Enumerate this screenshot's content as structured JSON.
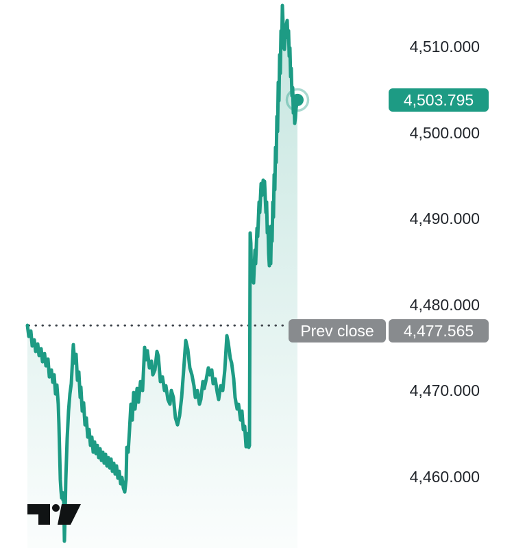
{
  "chart": {
    "prev_close_text": "Prev close",
    "prev_close": 4477.565,
    "prev_close_value_label": "4,477.565",
    "last_price": 4503.795,
    "last_price_label": "4,503.795",
    "colors": {
      "line": "#1d9b84",
      "accent_badge": "#1d9b84",
      "area_top": "rgba(29,155,132,0.26)",
      "area_bottom": "rgba(29,155,132,0.02)",
      "gray_badge": "#888b8e",
      "dotted_line": "#3f454c",
      "axis_text": "#22262c",
      "marker_ring": "rgba(29,155,132,0.38)",
      "logo": "#101314",
      "background": "#ffffff"
    },
    "chart_data": {
      "type": "area",
      "ylabel": "price",
      "grid": "off",
      "legend": "none",
      "axis_position": "right",
      "ylim": [
        4452,
        4515.5
      ],
      "y_ticks": [
        {
          "value": 4510,
          "label": "4,510.000"
        },
        {
          "value": 4500,
          "label": "4,500.000"
        },
        {
          "value": 4490,
          "label": "4,490.000"
        },
        {
          "value": 4480,
          "label": "4,480.000"
        },
        {
          "value": 4470,
          "label": "4,470.000"
        },
        {
          "value": 4460,
          "label": "4,460.000"
        }
      ],
      "annotations": [
        {
          "type": "dotted-level",
          "label": "Prev close",
          "value": 4477.565
        },
        {
          "type": "last-price-marker",
          "value": 4503.795
        }
      ],
      "series": [
        [
          40,
          4477.57
        ],
        [
          42,
          4476.29
        ],
        [
          45,
          4476.92
        ],
        [
          47,
          4475.17
        ],
        [
          50,
          4475.89
        ],
        [
          52,
          4474.53
        ],
        [
          55,
          4475.41
        ],
        [
          57,
          4474.06
        ],
        [
          60,
          4474.85
        ],
        [
          62,
          4473.34
        ],
        [
          65,
          4474.29
        ],
        [
          67,
          4472.86
        ],
        [
          70,
          4473.66
        ],
        [
          72,
          4471.58
        ],
        [
          75,
          4472.38
        ],
        [
          77,
          4470.95
        ],
        [
          79,
          4471.82
        ],
        [
          81,
          4469.59
        ],
        [
          83,
          4470.63
        ],
        [
          85,
          4468.4
        ],
        [
          86,
          4466.0
        ],
        [
          87,
          4462.82
        ],
        [
          88,
          4459.63
        ],
        [
          89,
          4458.35
        ],
        [
          90,
          4457.48
        ],
        [
          91,
          4458.12
        ],
        [
          92,
          4457.24
        ],
        [
          93,
          4457.56
        ],
        [
          94,
          4452.46
        ],
        [
          95,
          4455.65
        ],
        [
          96,
          4459.63
        ],
        [
          98,
          4464.41
        ],
        [
          100,
          4467.6
        ],
        [
          102,
          4469.59
        ],
        [
          104,
          4470.79
        ],
        [
          107,
          4475.33
        ],
        [
          109,
          4473.18
        ],
        [
          111,
          4474.21
        ],
        [
          113,
          4471.19
        ],
        [
          115,
          4472.14
        ],
        [
          117,
          4469.19
        ],
        [
          118,
          4470.39
        ],
        [
          120,
          4467.6
        ],
        [
          122,
          4468.56
        ],
        [
          124,
          4466.0
        ],
        [
          126,
          4466.8
        ],
        [
          128,
          4464.57
        ],
        [
          130,
          4465.45
        ],
        [
          132,
          4463.61
        ],
        [
          134,
          4464.57
        ],
        [
          136,
          4462.82
        ],
        [
          138,
          4464.01
        ],
        [
          140,
          4462.66
        ],
        [
          142,
          4463.61
        ],
        [
          144,
          4462.18
        ],
        [
          146,
          4463.22
        ],
        [
          148,
          4461.86
        ],
        [
          150,
          4462.82
        ],
        [
          152,
          4461.54
        ],
        [
          154,
          4462.58
        ],
        [
          156,
          4461.22
        ],
        [
          158,
          4462.18
        ],
        [
          160,
          4460.98
        ],
        [
          162,
          4462.02
        ],
        [
          164,
          4460.59
        ],
        [
          166,
          4461.54
        ],
        [
          168,
          4460.27
        ],
        [
          170,
          4461.22
        ],
        [
          172,
          4459.79
        ],
        [
          174,
          4460.59
        ],
        [
          176,
          4459.15
        ],
        [
          178,
          4459.87
        ],
        [
          180,
          4458.67
        ],
        [
          182,
          4458.19
        ],
        [
          184,
          4459.63
        ],
        [
          185,
          4463.38
        ],
        [
          187,
          4462.82
        ],
        [
          189,
          4465.45
        ],
        [
          191,
          4468.4
        ],
        [
          193,
          4466.56
        ],
        [
          195,
          4469.75
        ],
        [
          197,
          4467.84
        ],
        [
          200,
          4470.23
        ],
        [
          202,
          4468.64
        ],
        [
          205,
          4471.03
        ],
        [
          208,
          4469.99
        ],
        [
          211,
          4475.01
        ],
        [
          213,
          4473.58
        ],
        [
          215,
          4474.61
        ],
        [
          218,
          4472.62
        ],
        [
          221,
          4473.42
        ],
        [
          223,
          4471.82
        ],
        [
          226,
          4472.38
        ],
        [
          229,
          4474.53
        ],
        [
          231,
          4473.98
        ],
        [
          234,
          4471.03
        ],
        [
          237,
          4471.58
        ],
        [
          240,
          4469.99
        ],
        [
          242,
          4470.55
        ],
        [
          245,
          4468.95
        ],
        [
          248,
          4468.4
        ],
        [
          250,
          4469.99
        ],
        [
          253,
          4469.19
        ],
        [
          256,
          4466.8
        ],
        [
          259,
          4466.0
        ],
        [
          262,
          4467.04
        ],
        [
          265,
          4469.19
        ],
        [
          268,
          4472.38
        ],
        [
          271,
          4475.81
        ],
        [
          274,
          4474.77
        ],
        [
          277,
          4472.62
        ],
        [
          280,
          4471.82
        ],
        [
          283,
          4470.55
        ],
        [
          285,
          4469.19
        ],
        [
          288,
          4469.99
        ],
        [
          291,
          4468.4
        ],
        [
          293,
          4468.95
        ],
        [
          296,
          4471.03
        ],
        [
          298,
          4470.23
        ],
        [
          301,
          4471.35
        ],
        [
          304,
          4472.62
        ],
        [
          306,
          4471.82
        ],
        [
          309,
          4472.38
        ],
        [
          311,
          4470.79
        ],
        [
          314,
          4471.35
        ],
        [
          317,
          4469.75
        ],
        [
          319,
          4468.95
        ],
        [
          322,
          4470.55
        ],
        [
          325,
          4469.99
        ],
        [
          328,
          4472.38
        ],
        [
          331,
          4476.37
        ],
        [
          333,
          4475.57
        ],
        [
          336,
          4473.74
        ],
        [
          338,
          4473.18
        ],
        [
          341,
          4471.35
        ],
        [
          343,
          4469.19
        ],
        [
          346,
          4467.84
        ],
        [
          348,
          4468.4
        ],
        [
          351,
          4466.56
        ],
        [
          353,
          4467.6
        ],
        [
          355,
          4465.45
        ],
        [
          357,
          4465.85
        ],
        [
          359,
          4463.46
        ],
        [
          361,
          4464.97
        ],
        [
          363,
          4463.38
        ],
        [
          364,
          4463.61
        ],
        [
          365,
          4488.32
        ],
        [
          366,
          4487.13
        ],
        [
          367,
          4482.74
        ],
        [
          368,
          4483.54
        ],
        [
          370,
          4482.5
        ],
        [
          372,
          4486.33
        ],
        [
          373,
          4484.74
        ],
        [
          375,
          4488.88
        ],
        [
          376,
          4487.92
        ],
        [
          378,
          4491.91
        ],
        [
          379,
          4490.71
        ],
        [
          381,
          4494.06
        ],
        [
          382,
          4492.7
        ],
        [
          384,
          4494.46
        ],
        [
          385,
          4493.26
        ],
        [
          386,
          4494.3
        ],
        [
          388,
          4490.71
        ],
        [
          389,
          4491.91
        ],
        [
          390,
          4488.32
        ],
        [
          391,
          4489.12
        ],
        [
          392,
          4485.93
        ],
        [
          393,
          4484.5
        ],
        [
          394,
          4485.29
        ],
        [
          395,
          4484.74
        ],
        [
          396,
          4489.12
        ],
        [
          397,
          4487.36
        ],
        [
          398,
          4491.91
        ],
        [
          399,
          4490.16
        ],
        [
          400,
          4495.1
        ],
        [
          401,
          4493.34
        ],
        [
          402,
          4498.28
        ],
        [
          403,
          4496.53
        ],
        [
          404,
          4501.87
        ],
        [
          405,
          4500.12
        ],
        [
          406,
          4505.86
        ],
        [
          407,
          4503.7
        ],
        [
          408,
          4509.04
        ],
        [
          409,
          4506.89
        ],
        [
          410,
          4511.83
        ],
        [
          411,
          4509.84
        ],
        [
          412,
          4514.78
        ],
        [
          413,
          4512.63
        ],
        [
          414,
          4510.64
        ],
        [
          415,
          4509.68
        ],
        [
          417,
          4512.23
        ],
        [
          419,
          4513.03
        ],
        [
          420,
          4511.04
        ],
        [
          421,
          4511.83
        ],
        [
          422,
          4508.88
        ],
        [
          423,
          4509.84
        ],
        [
          424,
          4506.49
        ],
        [
          425,
          4507.45
        ],
        [
          426,
          4504.26
        ],
        [
          427,
          4505.22
        ],
        [
          428,
          4502.27
        ],
        [
          429,
          4503.07
        ],
        [
          430,
          4501.07
        ],
        [
          431,
          4501.71
        ],
        [
          432,
          4502.83
        ],
        [
          434,
          4503.795
        ]
      ]
    }
  }
}
